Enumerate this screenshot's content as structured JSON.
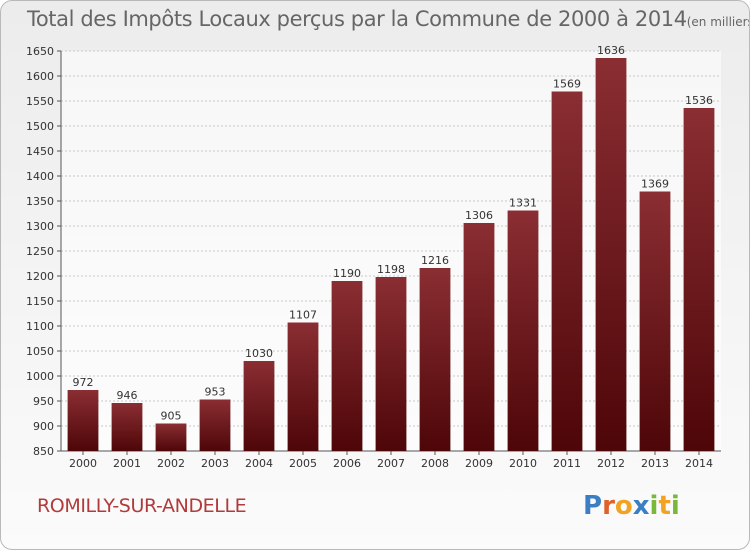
{
  "chart_data": {
    "type": "bar",
    "title": "Total des Impôts Locaux perçus par la Commune de 2000 à 2014",
    "unit": "(en milliers d'€)",
    "xlabel": "",
    "ylabel": "",
    "categories": [
      "2000",
      "2001",
      "2002",
      "2003",
      "2004",
      "2005",
      "2006",
      "2007",
      "2008",
      "2009",
      "2010",
      "2011",
      "2012",
      "2013",
      "2014"
    ],
    "values": [
      972,
      946,
      905,
      953,
      1030,
      1107,
      1190,
      1198,
      1216,
      1306,
      1331,
      1569,
      1636,
      1369,
      1536
    ],
    "ylim": [
      850,
      1650
    ],
    "yticks": [
      850,
      900,
      950,
      1000,
      1050,
      1100,
      1150,
      1200,
      1250,
      1300,
      1350,
      1400,
      1450,
      1500,
      1550,
      1600,
      1650
    ],
    "grid": true,
    "bar_color": "#7a1a1e"
  },
  "commune": "ROMILLY-SUR-ANDELLE",
  "logo": {
    "letters": [
      "P",
      "r",
      "o",
      "x",
      "i",
      "t",
      "i"
    ],
    "colors": [
      "#3a7fc4",
      "#e0602a",
      "#f2a323",
      "#3a7fc4",
      "#79b83a",
      "#f2a323",
      "#79b83a"
    ]
  }
}
